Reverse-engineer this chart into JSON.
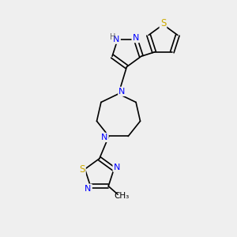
{
  "bg_color": "#efefef",
  "bond_color": "#000000",
  "atom_colors": {
    "N": "#0000ff",
    "S": "#ccaa00",
    "H": "#888888",
    "C": "#000000"
  },
  "font_size_atom": 7.5,
  "font_size_label": 7.5
}
